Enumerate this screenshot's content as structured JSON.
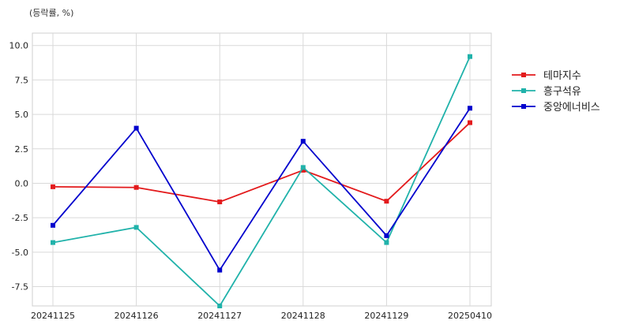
{
  "chart_data": {
    "type": "line",
    "unit_label": "(등락률, %)",
    "categories": [
      "20241125",
      "20241126",
      "20241127",
      "20241128",
      "20241129",
      "20250410"
    ],
    "series": [
      {
        "name": "테마지수",
        "color": "#e31a1c",
        "values": [
          -0.25,
          -0.3,
          -1.35,
          0.95,
          -1.3,
          4.4
        ]
      },
      {
        "name": "흥구석유",
        "color": "#20b2aa",
        "values": [
          -4.3,
          -3.2,
          -8.9,
          1.15,
          -4.3,
          9.2
        ]
      },
      {
        "name": "중앙에너비스",
        "color": "#0000cd",
        "values": [
          -3.05,
          4.0,
          -6.3,
          3.05,
          -3.8,
          5.45
        ]
      }
    ],
    "y_ticks": [
      "10.0",
      "7.5",
      "5.0",
      "2.5",
      "0.0",
      "-2.5",
      "-5.0",
      "-7.5"
    ],
    "ylim": [
      -8.9,
      10.9
    ],
    "grid": true,
    "legend_position": "right"
  }
}
